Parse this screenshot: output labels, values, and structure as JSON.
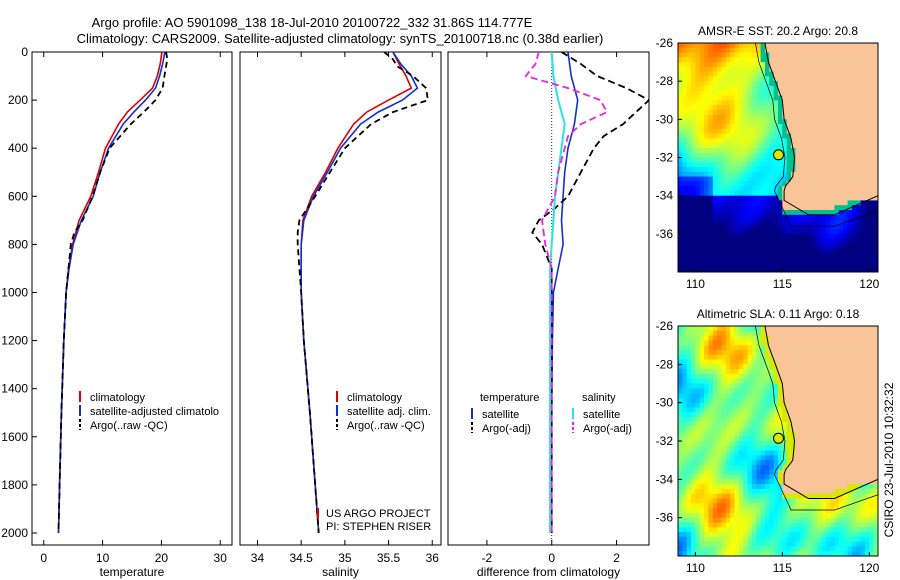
{
  "title_line1": "Argo profile: AO 5901098_138 18-Jul-2010 20100722_332 31.86S 114.777E",
  "title_line2": "Climatology: CARS2009. Satellite-adjusted climatology: synTS_20100718.nc (0.38d earlier)",
  "side_label": "CSIRO 23-Jul-2010 10:32:32",
  "project_line1": "US ARGO PROJECT",
  "project_line2": "PI: STEPHEN RISER",
  "colors": {
    "climatology": "#e00000",
    "satellite": "#1030d0",
    "argo": "#000000",
    "sal_satellite": "#30e0e0",
    "sal_argo": "#f020e0",
    "land": "#f8c498"
  },
  "chart_data": [
    {
      "type": "line",
      "xlabel": "temperature",
      "ylabel": "",
      "xlim": [
        -2,
        32
      ],
      "ylim": [
        2050,
        0
      ],
      "xticks": [
        0,
        10,
        20,
        30
      ],
      "yticks": [
        0,
        200,
        400,
        600,
        800,
        1000,
        1200,
        1400,
        1600,
        1800,
        2000
      ],
      "legend": [
        "climatology",
        "satellite-adjusted climatology",
        "Argo(..raw -QC)"
      ],
      "legend_display": [
        "climatology",
        "satellite-adjusted climatolo",
        "Argo(..raw -QC)"
      ],
      "legend_position": "bottom-right",
      "series": [
        {
          "name": "climatology",
          "depth": [
            0,
            50,
            100,
            150,
            200,
            250,
            300,
            400,
            500,
            600,
            700,
            800,
            900,
            1000,
            1200,
            1500,
            1800,
            2000
          ],
          "values": [
            20.1,
            19.8,
            19.3,
            18.5,
            16.4,
            14.2,
            12.7,
            10.5,
            9.3,
            8.0,
            6.0,
            4.9,
            4.2,
            3.8,
            3.4,
            3.0,
            2.7,
            2.5
          ]
        },
        {
          "name": "satellite-adjusted climatology",
          "depth": [
            0,
            50,
            100,
            150,
            200,
            250,
            300,
            400,
            500,
            600,
            700,
            800,
            900,
            1000,
            1200,
            1500,
            1800,
            2000
          ],
          "values": [
            20.6,
            20.2,
            19.7,
            19.0,
            17.3,
            15.3,
            13.5,
            11.0,
            9.6,
            8.4,
            6.4,
            5.0,
            4.3,
            3.8,
            3.4,
            3.0,
            2.7,
            2.5
          ]
        },
        {
          "name": "Argo(..raw -QC)",
          "depth": [
            0,
            30,
            100,
            150,
            200,
            250,
            300,
            350,
            400,
            500,
            600,
            700,
            750,
            800,
            900,
            1000,
            1200,
            1500,
            1800,
            2000
          ],
          "values": [
            20.8,
            21.0,
            20.5,
            20.2,
            19.0,
            17.0,
            14.8,
            13.0,
            11.2,
            9.6,
            8.3,
            6.6,
            5.2,
            4.6,
            4.2,
            3.8,
            3.4,
            3.0,
            2.7,
            2.5
          ]
        }
      ]
    },
    {
      "type": "line",
      "xlabel": "salinity",
      "ylabel": "",
      "xlim": [
        33.8,
        36.1
      ],
      "ylim": [
        2050,
        0
      ],
      "xticks": [
        34,
        34.5,
        35,
        35.5,
        36
      ],
      "legend": [
        "climatology",
        "satellite adj. clim.",
        "Argo(..raw -QC)"
      ],
      "legend_position": "bottom-right",
      "series": [
        {
          "name": "climatology",
          "depth": [
            0,
            50,
            100,
            150,
            200,
            250,
            300,
            400,
            500,
            600,
            700,
            800,
            1000,
            1200,
            1500,
            1800,
            2000
          ],
          "values": [
            35.55,
            35.62,
            35.7,
            35.76,
            35.5,
            35.25,
            35.1,
            34.92,
            34.78,
            34.62,
            34.52,
            34.5,
            34.5,
            34.53,
            34.6,
            34.66,
            34.7
          ]
        },
        {
          "name": "satellite adj. clim.",
          "depth": [
            0,
            50,
            100,
            150,
            200,
            250,
            300,
            400,
            500,
            600,
            700,
            800,
            1000,
            1200,
            1500,
            1800,
            2000
          ],
          "values": [
            35.55,
            35.64,
            35.76,
            35.83,
            35.66,
            35.38,
            35.18,
            34.95,
            34.8,
            34.64,
            34.53,
            34.5,
            34.5,
            34.53,
            34.6,
            34.66,
            34.7
          ]
        },
        {
          "name": "Argo(..raw -QC)",
          "depth": [
            0,
            30,
            60,
            100,
            150,
            200,
            250,
            300,
            400,
            500,
            600,
            700,
            750,
            800,
            1000,
            1200,
            1500,
            1800,
            2000
          ],
          "values": [
            35.45,
            35.55,
            35.6,
            35.78,
            35.93,
            35.95,
            35.55,
            35.3,
            35.0,
            34.83,
            34.66,
            34.48,
            34.46,
            34.46,
            34.5,
            34.53,
            34.6,
            34.66,
            34.7
          ]
        }
      ]
    },
    {
      "type": "line",
      "xlabel": "difference from climatology",
      "ylabel": "",
      "xlim": [
        -3.2,
        3.0
      ],
      "ylim": [
        2050,
        0
      ],
      "xticks": [
        -2,
        0,
        2
      ],
      "zero_line": true,
      "legend": [
        "temperature satellite",
        "temperature Argo(-adj)",
        "salinity satellite",
        "salinity Argo(-adj)"
      ],
      "legend_headers": [
        "temperature",
        "salinity"
      ],
      "legend_items": [
        "satellite",
        "Argo(-adj)",
        "satellite",
        "Argo(-adj)"
      ],
      "legend_position": "bottom",
      "series": [
        {
          "name": "temperature satellite",
          "depth": [
            0,
            100,
            200,
            300,
            400,
            500,
            600,
            700,
            800,
            900,
            1000,
            1200,
            1500,
            2000
          ],
          "values": [
            0.5,
            0.6,
            0.8,
            0.7,
            0.5,
            0.4,
            0.35,
            0.3,
            0.35,
            0.2,
            0.05,
            0.02,
            0.0,
            0.0
          ]
        },
        {
          "name": "temperature Argo(-adj)",
          "depth": [
            0,
            50,
            100,
            150,
            200,
            250,
            300,
            350,
            400,
            500,
            600,
            650,
            700,
            750,
            800,
            900,
            1000,
            1200,
            1500,
            2000
          ],
          "values": [
            0.3,
            0.9,
            1.4,
            2.3,
            3.0,
            2.6,
            2.2,
            1.6,
            1.3,
            0.9,
            0.5,
            0.1,
            -0.4,
            -0.6,
            -0.3,
            0.0,
            0.0,
            0.0,
            0.0,
            0.0
          ]
        },
        {
          "name": "salinity satellite",
          "depth": [
            0,
            100,
            200,
            300,
            400,
            500,
            600,
            700,
            800,
            900,
            1000,
            1200,
            1500,
            2000
          ],
          "values": [
            0.0,
            0.05,
            0.2,
            0.4,
            0.3,
            0.2,
            0.1,
            0.05,
            0.0,
            -0.05,
            -0.05,
            -0.05,
            -0.05,
            -0.05
          ]
        },
        {
          "name": "salinity Argo(-adj)",
          "depth": [
            0,
            50,
            100,
            150,
            200,
            250,
            300,
            350,
            400,
            500,
            600,
            700,
            800,
            900,
            1000,
            1200,
            1500,
            2000
          ],
          "values": [
            -0.4,
            -0.5,
            -0.8,
            0.5,
            1.5,
            1.7,
            0.9,
            0.5,
            0.4,
            0.2,
            0.1,
            -0.3,
            -0.2,
            0.0,
            0.0,
            0.0,
            0.0,
            0.0
          ]
        }
      ]
    },
    {
      "type": "heatmap",
      "title": "AMSR-E SST: 20.2 Argo: 20.8",
      "xlim": [
        109,
        120.5
      ],
      "ylim": [
        -38,
        -26
      ],
      "xticks": [
        110,
        115,
        120
      ],
      "yticks": [
        -36,
        -34,
        -32,
        -30,
        -28,
        -26
      ],
      "marker": [
        114.777,
        -31.86
      ]
    },
    {
      "type": "heatmap",
      "title": "Altimetric SLA: 0.11 Argo: 0.18",
      "xlim": [
        109,
        120.5
      ],
      "ylim": [
        -38,
        -26
      ],
      "xticks": [
        110,
        115,
        120
      ],
      "yticks": [
        -36,
        -34,
        -32,
        -30,
        -28,
        -26
      ],
      "marker": [
        114.777,
        -31.86
      ]
    }
  ]
}
